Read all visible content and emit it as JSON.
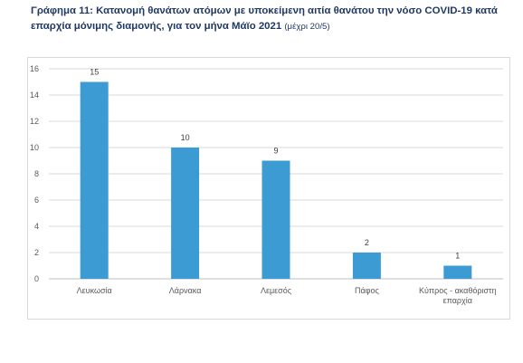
{
  "chart_data": {
    "type": "bar",
    "title": "Γράφημα 11: Κατανομή θανάτων ατόμων με υποκείμενη αιτία θανάτου την νόσο COVID-19 κατά επαρχία μόνιμης διαμονής, για τον μήνα Μάϊο 2021",
    "title_note": "(μέχρι 20/5)",
    "categories": [
      "Λευκωσία",
      "Λάρνακα",
      "Λεμεσός",
      "Πάφος",
      "Κύπρος - ακαθόριστη επαρχία"
    ],
    "values": [
      15,
      10,
      9,
      2,
      1
    ],
    "ylim": [
      0,
      16
    ],
    "yticks": [
      "0",
      "2",
      "4",
      "6",
      "8",
      "10",
      "12",
      "14",
      "16"
    ],
    "grid": true,
    "legend": "none",
    "bar_color": "#3d9bd3",
    "xlabel": "",
    "ylabel": ""
  }
}
